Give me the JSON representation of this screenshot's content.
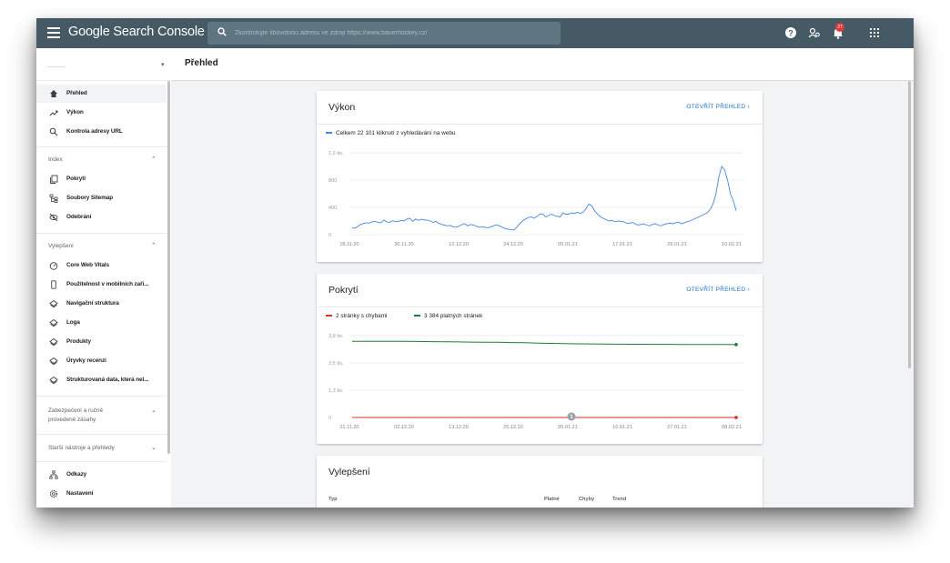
{
  "topbar": {
    "brand": "Google Search Console",
    "search_placeholder": "Zkontrolujte libovolnou adresu ve zdroji https://www.bauerhockey.cz/",
    "icons": [
      "menu-icon",
      "search-icon",
      "help-icon",
      "users-icon",
      "notifications-icon",
      "apps-icon"
    ],
    "notification_count": "27",
    "bg_color": "#455a64"
  },
  "sidebar": {
    "items": [
      {
        "label": "Přehled",
        "icon": "home-icon",
        "active": true
      },
      {
        "label": "Výkon",
        "icon": "trending-icon"
      },
      {
        "label": "Kontrola adresy URL",
        "icon": "search-icon"
      }
    ],
    "index": {
      "title": "Index",
      "items": [
        {
          "label": "Pokrytí",
          "icon": "copy-icon"
        },
        {
          "label": "Soubory Sitemap",
          "icon": "sitemap-icon"
        },
        {
          "label": "Odebrání",
          "icon": "eye-off-icon"
        }
      ]
    },
    "enhancements": {
      "title": "Vylepšení",
      "items": [
        {
          "label": "Core Web Vitals",
          "icon": "gauge-icon"
        },
        {
          "label": "Použitelnost v mobilních zaří...",
          "icon": "phone-icon"
        },
        {
          "label": "Navigační struktura",
          "icon": "layers-icon"
        },
        {
          "label": "Loga",
          "icon": "layers-icon"
        },
        {
          "label": "Produkty",
          "icon": "layers-icon"
        },
        {
          "label": "Úryvky recenzí",
          "icon": "layers-icon"
        },
        {
          "label": "Strukturovaná data, která nel...",
          "icon": "layers-icon"
        }
      ]
    },
    "security": {
      "line1": "Zabezpečení a ručně",
      "line2": "provedené zásahy"
    },
    "legacy": "Starší nástroje a přehledy",
    "bottom": [
      {
        "label": "Odkazy",
        "icon": "links-icon"
      },
      {
        "label": "Nastavení",
        "icon": "settings-icon"
      }
    ]
  },
  "main": {
    "page_title": "Přehled",
    "performance": {
      "title": "Výkon",
      "link": "OTEVŘÍT PŘEHLED",
      "legend": "Celkem 22 101 kliknutí z vyhledávání na webu"
    },
    "coverage": {
      "title": "Pokrytí",
      "link": "OTEVŘÍT PŘEHLED",
      "legend_errors": "2 stránky s chybami",
      "legend_valid": "3 384 platných stránek",
      "annotation": "1"
    },
    "enhancements": {
      "title": "Vylepšení",
      "col_type": "Typ",
      "col_valid": "Platné",
      "col_errors": "Chyby",
      "col_trend": "Trend"
    }
  },
  "chart_data": [
    {
      "type": "line",
      "title": "Výkon",
      "series": [
        {
          "name": "Celkem 22 101 kliknutí z vyhledávání na webu",
          "color": "#4285f4",
          "values": [
            100,
            95,
            120,
            150,
            165,
            175,
            170,
            190,
            195,
            180,
            175,
            215,
            185,
            180,
            205,
            190,
            195,
            210,
            200,
            230,
            240,
            195,
            230,
            210,
            225,
            215,
            215,
            200,
            180,
            195,
            165,
            150,
            140,
            130,
            135,
            115,
            110,
            125,
            150,
            160,
            130,
            150,
            140,
            125,
            110,
            115,
            110,
            100,
            115,
            130,
            145,
            130,
            110,
            90,
            80,
            75,
            70,
            110,
            160,
            200,
            230,
            250,
            260,
            240,
            270,
            300,
            305,
            260,
            280,
            300,
            280,
            270,
            260,
            320,
            300,
            300,
            320,
            310,
            330,
            310,
            330,
            380,
            450,
            420,
            350,
            300,
            260,
            240,
            220,
            200,
            210,
            190,
            200,
            195,
            190,
            170,
            165,
            180,
            160,
            140,
            150,
            160,
            140,
            130,
            150,
            160,
            140,
            130,
            150,
            160,
            170,
            160,
            175,
            185,
            160,
            175,
            190,
            200,
            220,
            240,
            260,
            280,
            300,
            320,
            370,
            450,
            600,
            850,
            1000,
            950,
            800,
            600,
            500,
            350
          ]
        }
      ],
      "x_tick_labels": [
        "18.11.20",
        "30.11.20",
        "12.12.20",
        "24.12.20",
        "05.01.21",
        "17.01.21",
        "29.01.21",
        "10.02.21"
      ],
      "y_tick_labels": [
        "0",
        "400",
        "800",
        "1,2 tis."
      ],
      "ylim": [
        0,
        1200
      ],
      "grid": true
    },
    {
      "type": "line",
      "title": "Pokrytí",
      "series": [
        {
          "name": "3 384 platných stránek",
          "color": "#188038",
          "values": [
            3540,
            3540,
            3538,
            3536,
            3532,
            3528,
            3522,
            3515,
            3508,
            3500,
            3495,
            3490,
            3480,
            3470,
            3455,
            3440,
            3430,
            3420,
            3415,
            3410,
            3405,
            3400,
            3398,
            3396,
            3394,
            3392,
            3390,
            3388,
            3386,
            3384
          ]
        },
        {
          "name": "2 stránky s chybami",
          "color": "#d93025",
          "values": [
            2,
            2,
            2,
            2,
            2,
            2,
            2,
            2,
            2,
            2,
            2,
            2,
            2,
            2,
            2,
            2,
            2,
            2,
            2,
            2,
            2,
            2,
            2,
            2,
            2,
            2,
            2,
            2,
            2,
            2
          ]
        }
      ],
      "x_tick_labels": [
        "21.11.20",
        "02.12.20",
        "13.12.20",
        "25.12.20",
        "05.01.21",
        "16.01.21",
        "27.01.21",
        "08.02.21"
      ],
      "y_tick_labels": [
        "0",
        "1,3 tis.",
        "2,5 tis.",
        "3,8 tis."
      ],
      "ylim": [
        0,
        3800
      ],
      "grid": true
    }
  ]
}
